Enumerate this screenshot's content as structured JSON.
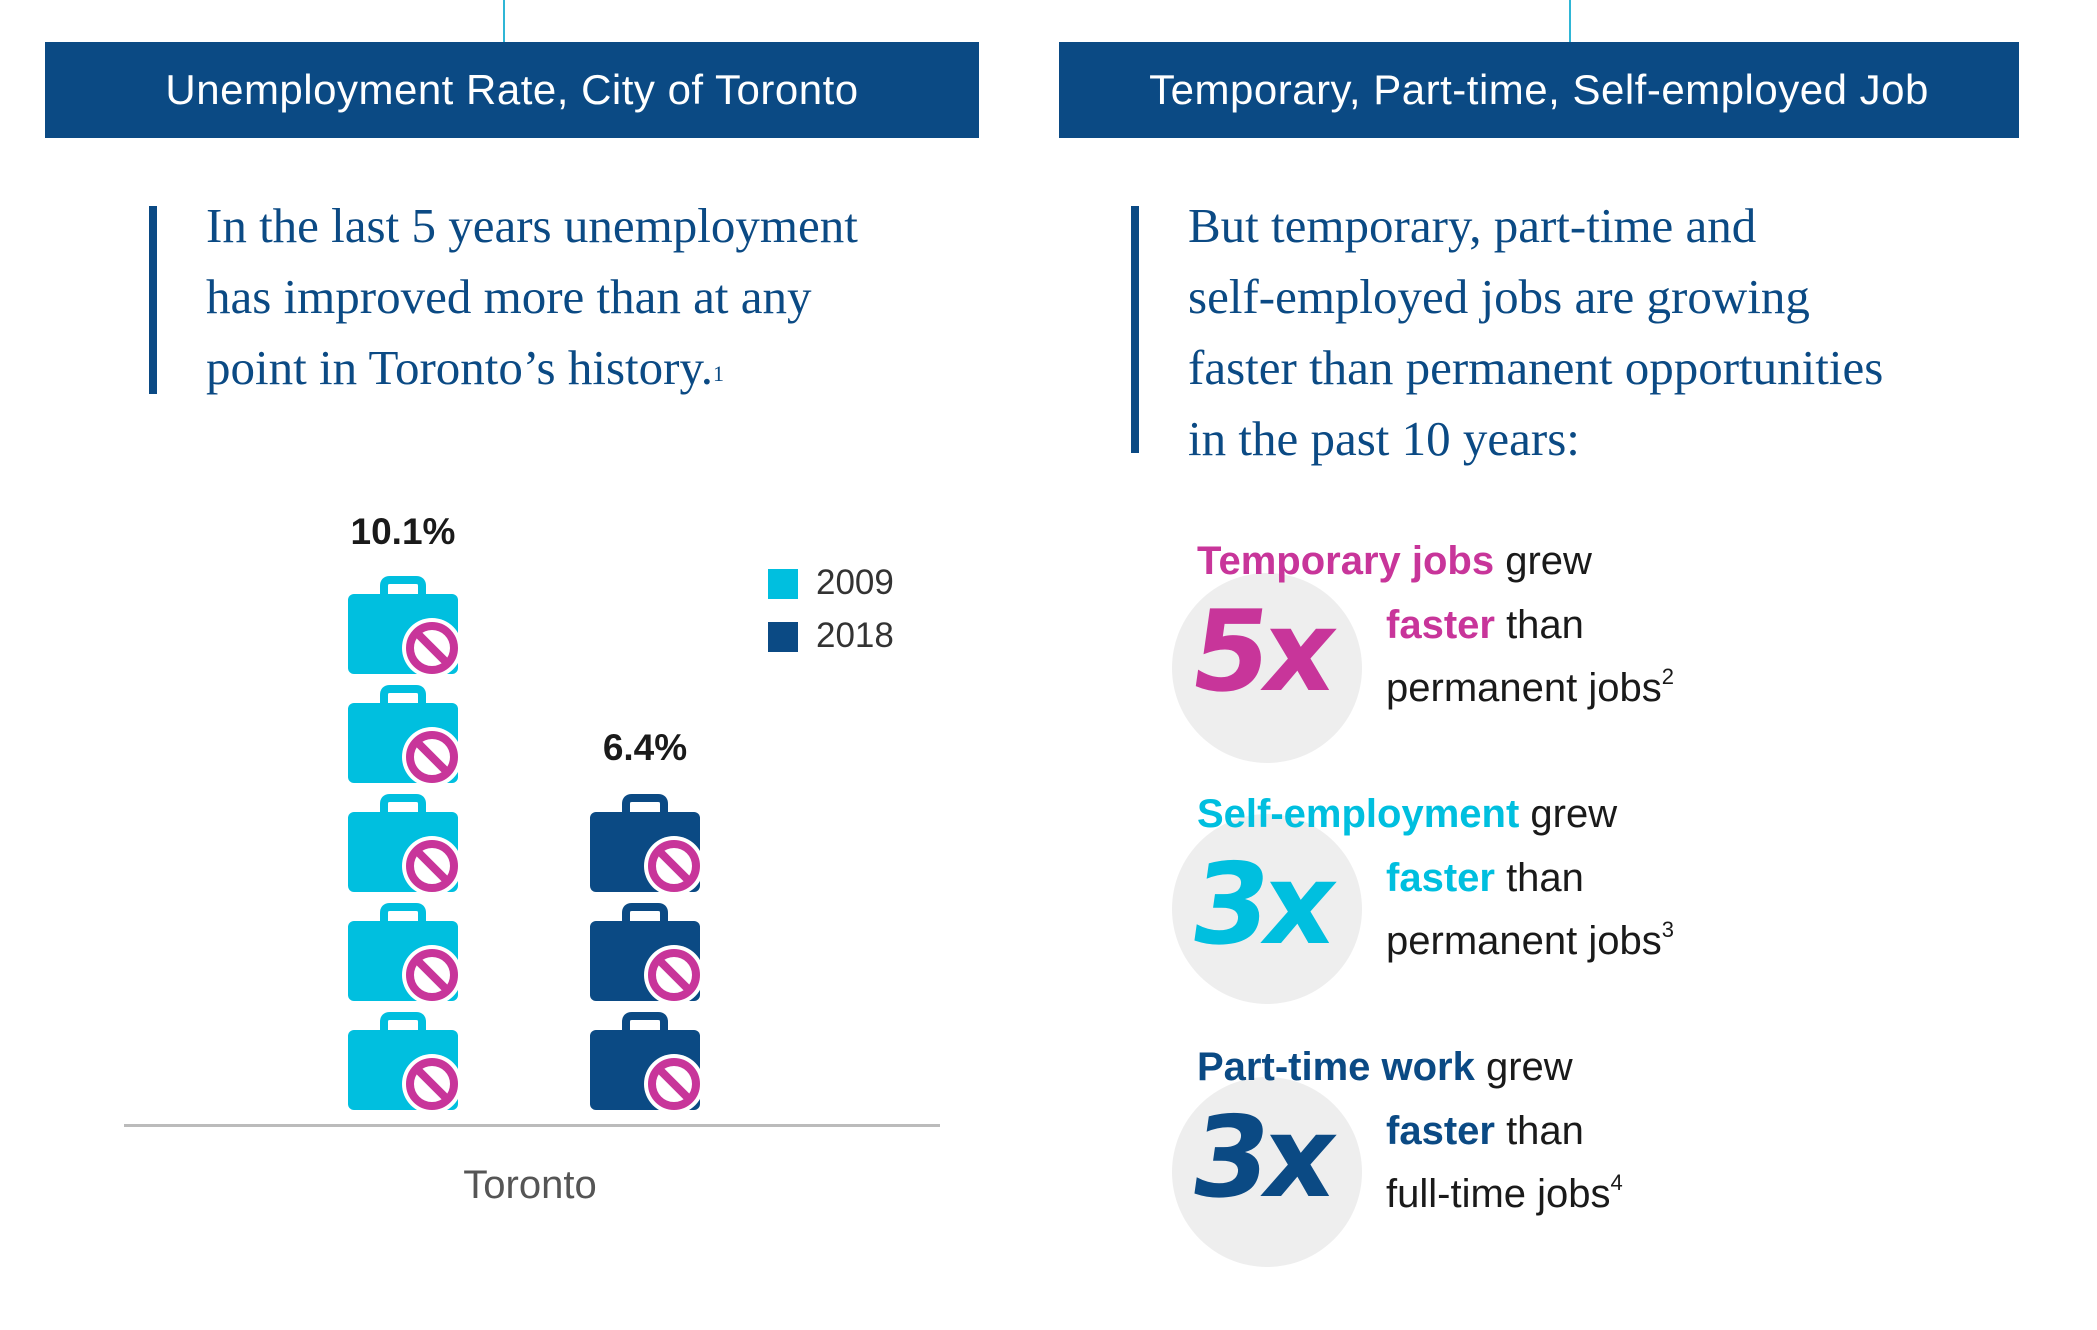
{
  "colors": {
    "navy": "#0b4a84",
    "cyan": "#00bfdf",
    "magenta": "#c8359a",
    "circle_bg": "#eeeeee",
    "icon_2009": "#00bfdf",
    "icon_2018": "#0b4a84"
  },
  "left": {
    "header": "Unemployment Rate, City of Toronto",
    "quote_lines": [
      "In the last 5 years unemployment",
      "has improved more than at any",
      "point in Toronto’s history."
    ],
    "quote_footnote": "1"
  },
  "right": {
    "header": "Temporary, Part-time, Self-employed Job",
    "quote_lines": [
      "But temporary, part-time and",
      "self-employed jobs are growing",
      "faster than permanent opportunities",
      "in the past 10 years:"
    ]
  },
  "chart_data": {
    "type": "bar",
    "title": "Unemployment Rate, City of Toronto",
    "categories": [
      "Toronto"
    ],
    "series": [
      {
        "name": "2009",
        "values": [
          10.1
        ],
        "label": "10.1%",
        "icon_count": 5
      },
      {
        "name": "2018",
        "values": [
          6.4
        ],
        "label": "6.4%",
        "icon_count": 3
      }
    ],
    "xlabel": "Toronto",
    "ylabel": "",
    "legend": [
      "2009",
      "2018"
    ],
    "legend_position": "top-right",
    "icon": "briefcase-with-no-sign-icon"
  },
  "stats": [
    {
      "multiplier": "5x",
      "title_strong": "Temporary jobs",
      "title_rest": " grew",
      "line2_strong": "faster",
      "line2_rest": " than",
      "line3": "permanent jobs",
      "footnote": "2",
      "color": "#c8359a"
    },
    {
      "multiplier": "3x",
      "title_strong": "Self-employment",
      "title_rest": " grew",
      "line2_strong": "faster",
      "line2_rest": " than",
      "line3": "permanent jobs",
      "footnote": "3",
      "color": "#00bfdf"
    },
    {
      "multiplier": "3x",
      "title_strong": "Part-time work",
      "title_rest": " grew",
      "line2_strong": "faster",
      "line2_rest": " than",
      "line3": "full-time jobs",
      "footnote": "4",
      "color": "#0b4a84"
    }
  ]
}
